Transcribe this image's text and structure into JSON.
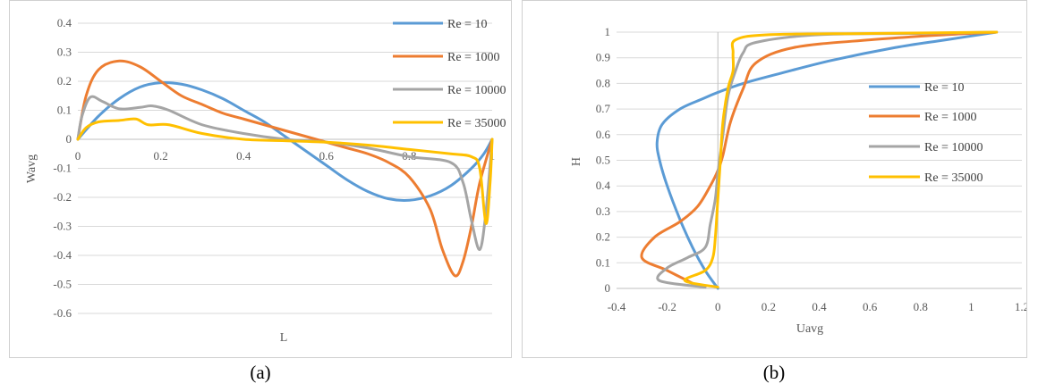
{
  "captions": {
    "a": "(a)",
    "b": "(b)"
  },
  "chart_data": [
    {
      "id": "a",
      "type": "line",
      "xlabel": "L",
      "ylabel": "Wavg",
      "xlim": [
        0,
        1
      ],
      "ylim": [
        -0.6,
        0.4
      ],
      "xticks": [
        0,
        0.2,
        0.4,
        0.6,
        0.8,
        1
      ],
      "xtick_labels": [
        "0",
        "0.2",
        "0.4",
        "0.6",
        "0.8",
        "1"
      ],
      "yticks": [
        0.4,
        0.3,
        0.2,
        0.1,
        0,
        -0.1,
        -0.2,
        -0.3,
        -0.4,
        -0.5,
        -0.6
      ],
      "ytick_labels": [
        "0.4",
        "0.3",
        "0.2",
        "0.1",
        "0",
        "-0.1",
        "-0.2",
        "-0.3",
        "-0.4",
        "-0.5",
        "-0.6"
      ],
      "grid": true,
      "legend": "right",
      "series": [
        {
          "name": "Re = 10",
          "color": "#5B9BD5",
          "points": [
            [
              0,
              0
            ],
            [
              0.05,
              0.08
            ],
            [
              0.1,
              0.14
            ],
            [
              0.15,
              0.18
            ],
            [
              0.2,
              0.195
            ],
            [
              0.25,
              0.19
            ],
            [
              0.3,
              0.17
            ],
            [
              0.35,
              0.14
            ],
            [
              0.4,
              0.1
            ],
            [
              0.45,
              0.06
            ],
            [
              0.5,
              0.01
            ],
            [
              0.55,
              -0.04
            ],
            [
              0.6,
              -0.09
            ],
            [
              0.65,
              -0.14
            ],
            [
              0.7,
              -0.18
            ],
            [
              0.75,
              -0.205
            ],
            [
              0.8,
              -0.21
            ],
            [
              0.85,
              -0.195
            ],
            [
              0.9,
              -0.16
            ],
            [
              0.95,
              -0.1
            ],
            [
              0.98,
              -0.05
            ],
            [
              1,
              0
            ]
          ]
        },
        {
          "name": "Re = 1000",
          "color": "#ED7D31",
          "points": [
            [
              0,
              0
            ],
            [
              0.02,
              0.15
            ],
            [
              0.05,
              0.24
            ],
            [
              0.1,
              0.27
            ],
            [
              0.15,
              0.25
            ],
            [
              0.2,
              0.2
            ],
            [
              0.25,
              0.15
            ],
            [
              0.3,
              0.12
            ],
            [
              0.35,
              0.09
            ],
            [
              0.4,
              0.07
            ],
            [
              0.45,
              0.05
            ],
            [
              0.5,
              0.03
            ],
            [
              0.55,
              0.01
            ],
            [
              0.6,
              -0.01
            ],
            [
              0.65,
              -0.03
            ],
            [
              0.7,
              -0.05
            ],
            [
              0.75,
              -0.08
            ],
            [
              0.8,
              -0.13
            ],
            [
              0.85,
              -0.24
            ],
            [
              0.88,
              -0.38
            ],
            [
              0.91,
              -0.47
            ],
            [
              0.93,
              -0.42
            ],
            [
              0.95,
              -0.3
            ],
            [
              0.97,
              -0.15
            ],
            [
              1,
              0
            ]
          ]
        },
        {
          "name": "Re = 10000",
          "color": "#A5A5A5",
          "points": [
            [
              0,
              0
            ],
            [
              0.01,
              0.08
            ],
            [
              0.03,
              0.145
            ],
            [
              0.06,
              0.13
            ],
            [
              0.1,
              0.105
            ],
            [
              0.15,
              0.11
            ],
            [
              0.18,
              0.115
            ],
            [
              0.22,
              0.1
            ],
            [
              0.3,
              0.05
            ],
            [
              0.4,
              0.02
            ],
            [
              0.5,
              0
            ],
            [
              0.6,
              -0.01
            ],
            [
              0.7,
              -0.03
            ],
            [
              0.8,
              -0.06
            ],
            [
              0.9,
              -0.08
            ],
            [
              0.93,
              -0.15
            ],
            [
              0.95,
              -0.28
            ],
            [
              0.97,
              -0.38
            ],
            [
              0.985,
              -0.25
            ],
            [
              1,
              0
            ]
          ]
        },
        {
          "name": "Re = 35000",
          "color": "#FFC000",
          "points": [
            [
              0,
              0
            ],
            [
              0.02,
              0.04
            ],
            [
              0.05,
              0.06
            ],
            [
              0.1,
              0.065
            ],
            [
              0.14,
              0.07
            ],
            [
              0.17,
              0.05
            ],
            [
              0.22,
              0.05
            ],
            [
              0.3,
              0.02
            ],
            [
              0.4,
              0
            ],
            [
              0.5,
              -0.005
            ],
            [
              0.6,
              -0.01
            ],
            [
              0.7,
              -0.02
            ],
            [
              0.8,
              -0.035
            ],
            [
              0.9,
              -0.05
            ],
            [
              0.95,
              -0.06
            ],
            [
              0.97,
              -0.1
            ],
            [
              0.985,
              -0.29
            ],
            [
              0.995,
              -0.15
            ],
            [
              1,
              0
            ]
          ]
        }
      ]
    },
    {
      "id": "b",
      "type": "line",
      "xlabel": "Uavg",
      "ylabel": "H",
      "xlim": [
        -0.4,
        1.2
      ],
      "ylim": [
        0,
        1
      ],
      "xticks": [
        -0.4,
        -0.2,
        0,
        0.2,
        0.4,
        0.6,
        0.8,
        1,
        1.2
      ],
      "xtick_labels": [
        "-0.4",
        "-0.2",
        "0",
        "0.2",
        "0.4",
        "0.6",
        "0.8",
        "1",
        "1.2"
      ],
      "yticks": [
        1,
        0.9,
        0.8,
        0.7,
        0.6,
        0.5,
        0.4,
        0.3,
        0.2,
        0.1,
        0
      ],
      "ytick_labels": [
        "1",
        "0.9",
        "0.8",
        "0.7",
        "0.6",
        "0.5",
        "0.4",
        "0.3",
        "0.2",
        "0.1",
        "0"
      ],
      "grid": true,
      "legend": "right",
      "series": [
        {
          "name": "Re = 10",
          "color": "#5B9BD5",
          "points": [
            [
              0,
              0
            ],
            [
              -0.05,
              0.07
            ],
            [
              -0.1,
              0.16
            ],
            [
              -0.15,
              0.27
            ],
            [
              -0.2,
              0.4
            ],
            [
              -0.23,
              0.5
            ],
            [
              -0.24,
              0.57
            ],
            [
              -0.22,
              0.64
            ],
            [
              -0.15,
              0.7
            ],
            [
              -0.06,
              0.74
            ],
            [
              0,
              0.765
            ],
            [
              0.1,
              0.8
            ],
            [
              0.25,
              0.84
            ],
            [
              0.45,
              0.89
            ],
            [
              0.7,
              0.94
            ],
            [
              0.9,
              0.97
            ],
            [
              1.1,
              1.0
            ]
          ]
        },
        {
          "name": "Re = 1000",
          "color": "#ED7D31",
          "points": [
            [
              -0.1,
              0.02
            ],
            [
              -0.2,
              0.07
            ],
            [
              -0.3,
              0.12
            ],
            [
              -0.25,
              0.2
            ],
            [
              -0.15,
              0.26
            ],
            [
              -0.08,
              0.32
            ],
            [
              -0.03,
              0.4
            ],
            [
              0,
              0.46
            ],
            [
              0.02,
              0.52
            ],
            [
              0.05,
              0.65
            ],
            [
              0.1,
              0.78
            ],
            [
              0.15,
              0.88
            ],
            [
              0.3,
              0.94
            ],
            [
              0.6,
              0.97
            ],
            [
              0.9,
              0.99
            ],
            [
              1.1,
              1.0
            ]
          ]
        },
        {
          "name": "Re = 10000",
          "color": "#A5A5A5",
          "points": [
            [
              -0.05,
              0.005
            ],
            [
              -0.23,
              0.03
            ],
            [
              -0.2,
              0.08
            ],
            [
              -0.12,
              0.12
            ],
            [
              -0.05,
              0.16
            ],
            [
              -0.03,
              0.25
            ],
            [
              -0.01,
              0.35
            ],
            [
              0,
              0.45
            ],
            [
              0.02,
              0.6
            ],
            [
              0.04,
              0.75
            ],
            [
              0.07,
              0.85
            ],
            [
              0.1,
              0.92
            ],
            [
              0.15,
              0.96
            ],
            [
              0.4,
              0.99
            ],
            [
              0.8,
              0.995
            ],
            [
              1.1,
              1.0
            ]
          ]
        },
        {
          "name": "Re = 35000",
          "color": "#FFC000",
          "points": [
            [
              0,
              0.005
            ],
            [
              -0.13,
              0.03
            ],
            [
              -0.05,
              0.07
            ],
            [
              -0.02,
              0.12
            ],
            [
              -0.01,
              0.2
            ],
            [
              0,
              0.35
            ],
            [
              0.01,
              0.5
            ],
            [
              0.02,
              0.65
            ],
            [
              0.04,
              0.78
            ],
            [
              0.06,
              0.85
            ],
            [
              0.06,
              0.92
            ],
            [
              0.07,
              0.97
            ],
            [
              0.2,
              0.99
            ],
            [
              0.6,
              0.995
            ],
            [
              1.1,
              1.0
            ]
          ]
        }
      ]
    }
  ]
}
